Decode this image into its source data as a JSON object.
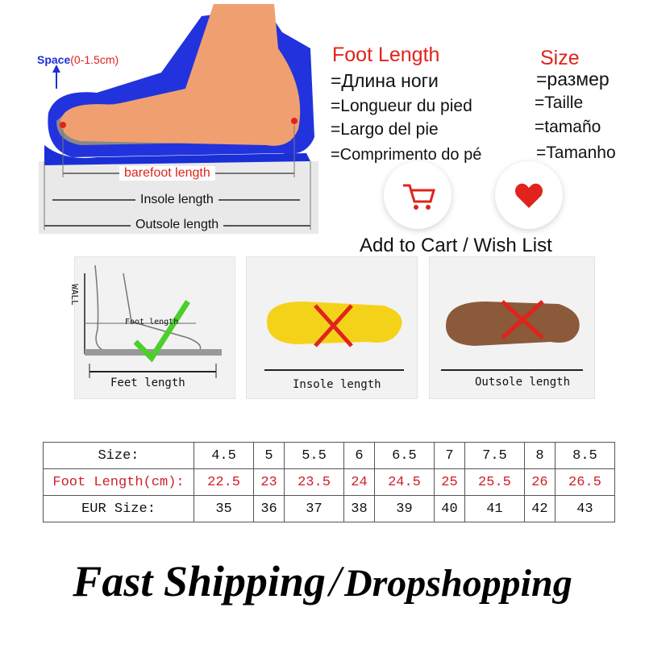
{
  "diagram": {
    "space_label": "Space",
    "space_range": "(0-1.5cm)",
    "barefoot_length": "barefoot length",
    "insole_length": "Insole length",
    "outsole_length": "Outsole length"
  },
  "foot_length": {
    "title": "Foot Length",
    "translations": [
      "=Длина ноги",
      "=Longueur du pied",
      "=Largo del pie",
      "=Comprimento do pé"
    ]
  },
  "size": {
    "title": "Size",
    "translations": [
      "=размер",
      "=Taille",
      "=tamaño",
      "=Tamanho"
    ]
  },
  "actions": {
    "cart_icon": "shopping-cart-icon",
    "wish_icon": "heart-icon",
    "label": "Add to Cart / Wish List"
  },
  "panels": [
    {
      "wall": "WALL",
      "inner": "Foot length",
      "label": "Feet length",
      "mark": "check"
    },
    {
      "label": "Insole length",
      "mark": "cross"
    },
    {
      "label": "Outsole length",
      "mark": "cross"
    }
  ],
  "size_table": {
    "rows": [
      {
        "label": "Size:",
        "values": [
          "4.5",
          "5",
          "5.5",
          "6",
          "6.5",
          "7",
          "7.5",
          "8",
          "8.5"
        ]
      },
      {
        "label": "Foot Length(cm):",
        "values": [
          "22.5",
          "23",
          "23.5",
          "24",
          "24.5",
          "25",
          "25.5",
          "26",
          "26.5"
        ]
      },
      {
        "label": "EUR Size:",
        "values": [
          "35",
          "36",
          "37",
          "38",
          "39",
          "40",
          "41",
          "42",
          "43"
        ]
      }
    ]
  },
  "footer": {
    "part1": "Fast Shipping",
    "separator": "/",
    "part2": "Dropshopping"
  },
  "colors": {
    "accent_red": "#e0231c",
    "shoe_blue": "#1a2fd6",
    "foot": "#f0a070",
    "check_green": "#4ccf2a"
  }
}
